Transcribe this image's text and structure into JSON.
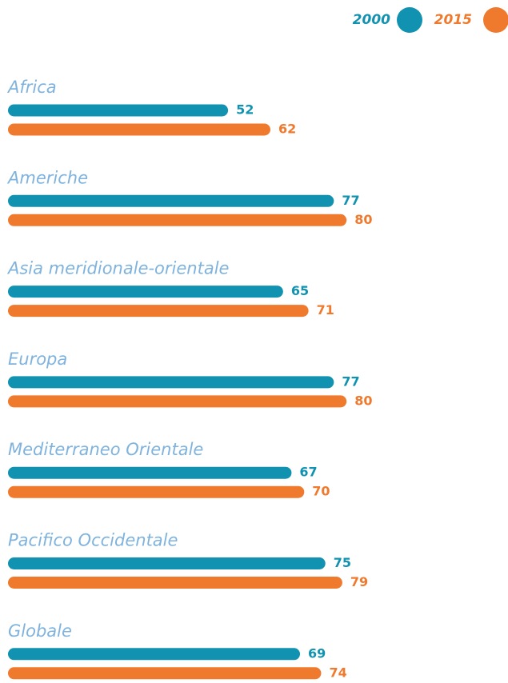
{
  "chart_data": {
    "type": "bar",
    "orientation": "horizontal",
    "categories": [
      "Africa",
      "Americhe",
      "Asia meridionale-orientale",
      "Europa",
      "Mediterraneo Orientale",
      "Pacifico Occidentale",
      "Globale"
    ],
    "series": [
      {
        "name": "2000",
        "color": "#1192b0",
        "values": [
          52,
          77,
          65,
          77,
          67,
          75,
          69
        ]
      },
      {
        "name": "2015",
        "color": "#ef7a2d",
        "values": [
          62,
          80,
          71,
          80,
          70,
          79,
          74
        ]
      }
    ],
    "legend": "top-right"
  }
}
